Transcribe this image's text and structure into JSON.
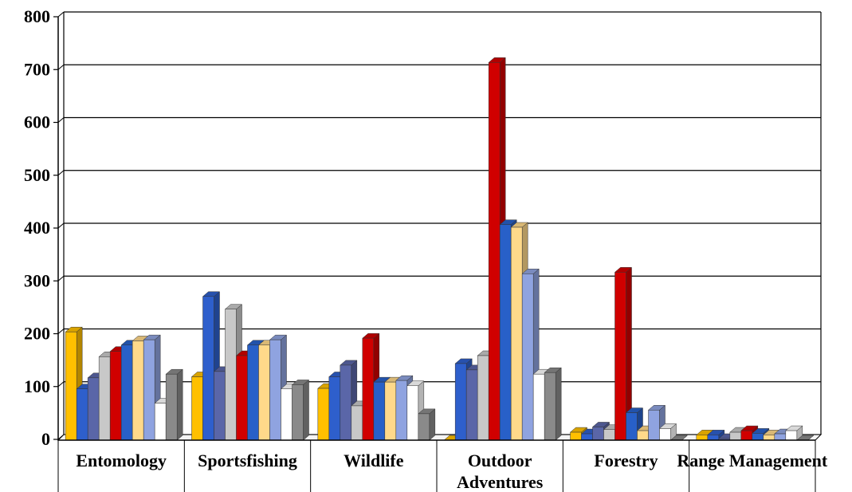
{
  "chart_data": {
    "type": "bar",
    "title": "",
    "xlabel": "",
    "ylabel": "",
    "ylim": [
      0,
      800
    ],
    "y_ticks": [
      "0",
      "100",
      "200",
      "300",
      "400",
      "500",
      "600",
      "700",
      "800"
    ],
    "grid": true,
    "legend": "none",
    "categories": [
      [
        "Entomology"
      ],
      [
        "Sportsfishing"
      ],
      [
        "Wildlife"
      ],
      [
        "Outdoor",
        "Adventures"
      ],
      [
        "Forestry"
      ],
      [
        "Range Management"
      ]
    ],
    "series": [
      {
        "color": "#FFC000",
        "values": [
          205,
          120,
          98,
          0,
          15,
          10
        ]
      },
      {
        "color": "#2E5FCC",
        "values": [
          97,
          272,
          120,
          145,
          12,
          10
        ]
      },
      {
        "color": "#5A66A8",
        "values": [
          118,
          130,
          142,
          133,
          25,
          3
        ]
      },
      {
        "color": "#C8C8C8",
        "values": [
          158,
          248,
          65,
          160,
          20,
          15
        ]
      },
      {
        "color": "#D00000",
        "values": [
          168,
          160,
          193,
          715,
          318,
          18
        ]
      },
      {
        "color": "#2860C8",
        "values": [
          180,
          180,
          110,
          408,
          52,
          13
        ]
      },
      {
        "color": "#FFD98A",
        "values": [
          188,
          180,
          110,
          403,
          18,
          10
        ]
      },
      {
        "color": "#8FA3E0",
        "values": [
          190,
          190,
          113,
          315,
          57,
          12
        ]
      },
      {
        "color": "#FFFFFF",
        "values": [
          70,
          97,
          103,
          125,
          22,
          18
        ]
      },
      {
        "color": "#8A8A8A",
        "values": [
          125,
          105,
          50,
          128,
          0,
          0
        ]
      }
    ]
  }
}
